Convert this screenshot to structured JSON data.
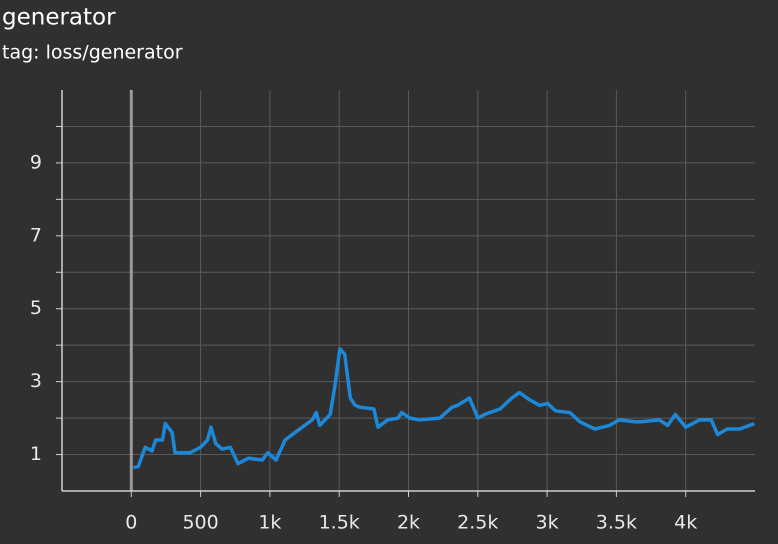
{
  "chart_data": {
    "type": "line",
    "title": "generator",
    "subtitle": "tag: loss/generator",
    "x": [
      15,
      50,
      100,
      150,
      175,
      225,
      245,
      295,
      315,
      425,
      500,
      550,
      575,
      610,
      655,
      715,
      770,
      845,
      945,
      985,
      1045,
      1110,
      1180,
      1305,
      1335,
      1360,
      1435,
      1470,
      1505,
      1540,
      1580,
      1615,
      1650,
      1750,
      1780,
      1850,
      1925,
      1950,
      2010,
      2080,
      2225,
      2315,
      2355,
      2440,
      2500,
      2550,
      2660,
      2745,
      2800,
      2875,
      2945,
      3005,
      3060,
      3165,
      3235,
      3345,
      3450,
      3520,
      3630,
      3680,
      3810,
      3870,
      3925,
      4000,
      4100,
      4185,
      4230,
      4300,
      4390,
      4495
    ],
    "series": [
      {
        "color": "#1e88d8",
        "values": [
          0.64,
          0.67,
          1.2,
          1.1,
          1.4,
          1.4,
          1.85,
          1.6,
          1.05,
          1.05,
          1.2,
          1.4,
          1.75,
          1.3,
          1.15,
          1.2,
          0.75,
          0.9,
          0.85,
          1.05,
          0.85,
          1.4,
          1.6,
          1.95,
          2.15,
          1.8,
          2.1,
          2.9,
          3.9,
          3.75,
          2.55,
          2.35,
          2.3,
          2.25,
          1.75,
          1.95,
          2.0,
          2.15,
          2.0,
          1.95,
          2.0,
          2.3,
          2.35,
          2.55,
          2.0,
          2.1,
          2.25,
          2.55,
          2.7,
          2.5,
          2.35,
          2.4,
          2.2,
          2.15,
          1.9,
          1.7,
          1.8,
          1.95,
          1.9,
          1.9,
          1.95,
          1.8,
          2.1,
          1.75,
          1.95,
          1.95,
          1.55,
          1.7,
          1.7,
          1.85
        ]
      }
    ],
    "xlim": [
      -500,
      4500
    ],
    "ylim": [
      0,
      11
    ],
    "xticks": [
      0,
      500,
      {
        "value": 1000,
        "label": "1k"
      },
      {
        "value": 1500,
        "label": "1.5k"
      },
      {
        "value": 2000,
        "label": "2k"
      },
      {
        "value": 2500,
        "label": "2.5k"
      },
      {
        "value": 3000,
        "label": "3k"
      },
      {
        "value": 3500,
        "label": "3.5k"
      },
      {
        "value": 4000,
        "label": "4k"
      }
    ],
    "yticks": [
      1,
      3,
      5,
      7,
      9
    ],
    "minor_yticks": [
      2,
      4,
      6,
      8,
      10
    ],
    "grid": true
  }
}
